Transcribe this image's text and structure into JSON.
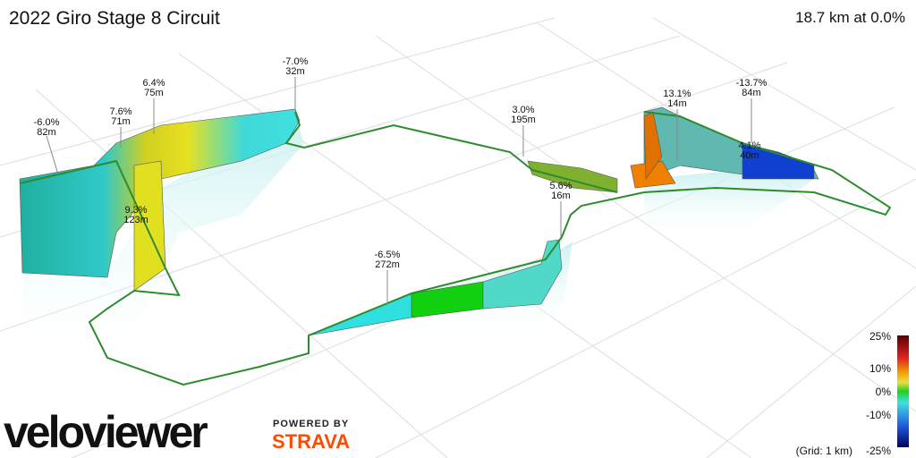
{
  "header": {
    "title": "2022 Giro Stage 8 Circuit",
    "summary": "18.7 km at 0.0%"
  },
  "annotations": [
    {
      "grade": "-6.0%",
      "distance": "82m"
    },
    {
      "grade": "7.6%",
      "distance": "71m"
    },
    {
      "grade": "6.4%",
      "distance": "75m"
    },
    {
      "grade": "-7.0%",
      "distance": "32m"
    },
    {
      "grade": "9.3%",
      "distance": "123m"
    },
    {
      "grade": "3.0%",
      "distance": "195m"
    },
    {
      "grade": "5.6%",
      "distance": "16m"
    },
    {
      "grade": "-6.5%",
      "distance": "272m"
    },
    {
      "grade": "13.1%",
      "distance": "14m"
    },
    {
      "grade": "-13.7%",
      "distance": "84m"
    },
    {
      "grade": "4.1%",
      "distance": "40m"
    }
  ],
  "legend": {
    "labels": [
      "25%",
      "10%",
      "0%",
      "-10%",
      "-25%"
    ],
    "grid_note": "(Grid: 1 km)"
  },
  "branding": {
    "logo": "veloviewer",
    "powered_by": "POWERED BY",
    "partner": "STRAVA"
  }
}
